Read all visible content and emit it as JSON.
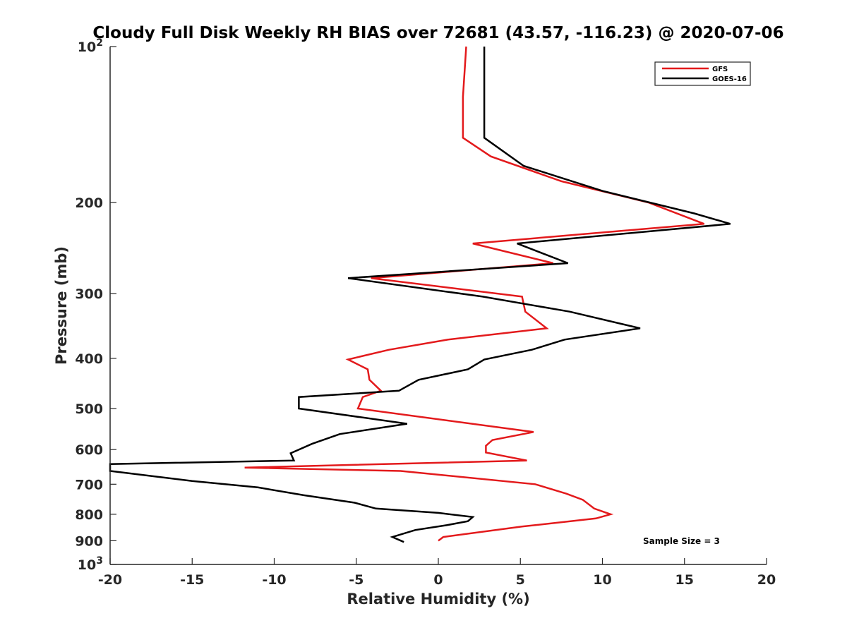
{
  "chart_data": {
    "type": "line",
    "title": "Cloudy Full Disk Weekly RH BIAS over 72681 (43.57, -116.23) @ 2020-07-06",
    "xlabel": "Relative Humidity (%)",
    "ylabel": "Pressure (mb)",
    "xlim": [
      -20,
      20
    ],
    "ylim": [
      100,
      1000
    ],
    "y_scale": "log",
    "y_reversed": true,
    "x_ticks": [
      "-20",
      "-15",
      "-10",
      "-5",
      "0",
      "5",
      "10",
      "15",
      "20"
    ],
    "y_ticks": [
      {
        "value": 100,
        "base": "10",
        "exp": "2"
      },
      {
        "value": 200,
        "label": "200"
      },
      {
        "value": 300,
        "label": "300"
      },
      {
        "value": 400,
        "label": "400"
      },
      {
        "value": 500,
        "label": "500"
      },
      {
        "value": 600,
        "label": "600"
      },
      {
        "value": 700,
        "label": "700"
      },
      {
        "value": 800,
        "label": "800"
      },
      {
        "value": 900,
        "label": "900"
      },
      {
        "value": 1000,
        "base": "10",
        "exp": "3"
      }
    ],
    "grid": false,
    "legend_position": "top-right",
    "annotation": "Sample Size = 3",
    "series": [
      {
        "name": "GFS",
        "color": "#e31a1c",
        "points": [
          [
            1.7,
            100
          ],
          [
            1.5,
            125
          ],
          [
            1.5,
            150
          ],
          [
            3.2,
            163
          ],
          [
            7.5,
            182
          ],
          [
            12.8,
            200
          ],
          [
            16.2,
            220
          ],
          [
            2.1,
            240
          ],
          [
            7.0,
            262
          ],
          [
            -4.1,
            280
          ],
          [
            5.1,
            304
          ],
          [
            5.3,
            325
          ],
          [
            6.6,
            350
          ],
          [
            0.6,
            368
          ],
          [
            -3.0,
            385
          ],
          [
            -5.5,
            402
          ],
          [
            -4.3,
            420
          ],
          [
            -4.2,
            440
          ],
          [
            -3.5,
            462
          ],
          [
            -4.6,
            475
          ],
          [
            -4.9,
            500
          ],
          [
            5.8,
            555
          ],
          [
            3.3,
            575
          ],
          [
            2.9,
            590
          ],
          [
            2.9,
            608
          ],
          [
            5.4,
            630
          ],
          [
            -11.8,
            650
          ],
          [
            -2.3,
            660
          ],
          [
            5.9,
            700
          ],
          [
            7.8,
            730
          ],
          [
            8.8,
            750
          ],
          [
            9.5,
            780
          ],
          [
            10.5,
            800
          ],
          [
            9.6,
            815
          ],
          [
            5.1,
            845
          ],
          [
            0.3,
            885
          ],
          [
            0.0,
            900
          ]
        ]
      },
      {
        "name": "GOES-16",
        "color": "#000000",
        "points": [
          [
            2.8,
            100
          ],
          [
            2.8,
            125
          ],
          [
            2.8,
            150
          ],
          [
            5.2,
            170
          ],
          [
            10.0,
            190
          ],
          [
            15.6,
            210
          ],
          [
            17.8,
            220
          ],
          [
            4.8,
            240
          ],
          [
            7.9,
            262
          ],
          [
            -5.5,
            280
          ],
          [
            2.7,
            304
          ],
          [
            8.0,
            325
          ],
          [
            12.3,
            350
          ],
          [
            7.7,
            368
          ],
          [
            5.7,
            385
          ],
          [
            2.8,
            402
          ],
          [
            1.8,
            420
          ],
          [
            -1.2,
            440
          ],
          [
            -2.4,
            462
          ],
          [
            -8.5,
            475
          ],
          [
            -8.5,
            500
          ],
          [
            -1.9,
            535
          ],
          [
            -6.0,
            560
          ],
          [
            -7.7,
            585
          ],
          [
            -9.0,
            610
          ],
          [
            -8.8,
            630
          ],
          [
            -20.0,
            640
          ],
          [
            -20.0,
            660
          ],
          [
            -15.0,
            690
          ],
          [
            -11.0,
            710
          ],
          [
            -8.2,
            735
          ],
          [
            -5.1,
            760
          ],
          [
            -3.8,
            780
          ],
          [
            0.0,
            795
          ],
          [
            2.1,
            810
          ],
          [
            1.8,
            825
          ],
          [
            0.5,
            840
          ],
          [
            -1.4,
            858
          ],
          [
            -2.8,
            885
          ],
          [
            -2.1,
            905
          ]
        ]
      }
    ]
  }
}
